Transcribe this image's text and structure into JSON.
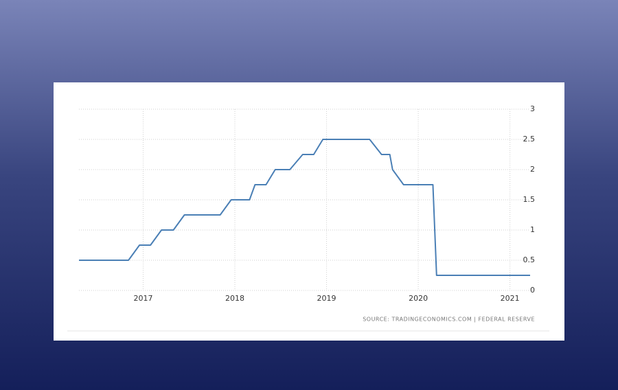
{
  "chart_data": {
    "type": "line",
    "x": [
      2016.3,
      2016.84,
      2016.96,
      2017.08,
      2017.2,
      2017.33,
      2017.45,
      2017.84,
      2017.96,
      2018.16,
      2018.22,
      2018.34,
      2018.44,
      2018.6,
      2018.74,
      2018.86,
      2018.96,
      2019.47,
      2019.6,
      2019.69,
      2019.72,
      2019.84,
      2020.16,
      2020.2,
      2021.22
    ],
    "series": [
      {
        "color": "#4a7fb5",
        "values": [
          0.5,
          0.5,
          0.75,
          0.75,
          1.0,
          1.0,
          1.25,
          1.25,
          1.5,
          1.5,
          1.75,
          1.75,
          2.0,
          2.0,
          2.25,
          2.25,
          2.5,
          2.5,
          2.25,
          2.25,
          2.0,
          1.75,
          1.75,
          0.25,
          0.25
        ]
      }
    ],
    "xlim": [
      2016.3,
      2021.22
    ],
    "xticks": [
      2017,
      2018,
      2019,
      2020,
      2021
    ],
    "ylim": [
      0,
      3
    ],
    "yticks": [
      0,
      0.5,
      1,
      1.5,
      2,
      2.5,
      3
    ],
    "grid": true,
    "source": "SOURCE: TRADINGECONOMICS.COM | FEDERAL RESERVE"
  }
}
